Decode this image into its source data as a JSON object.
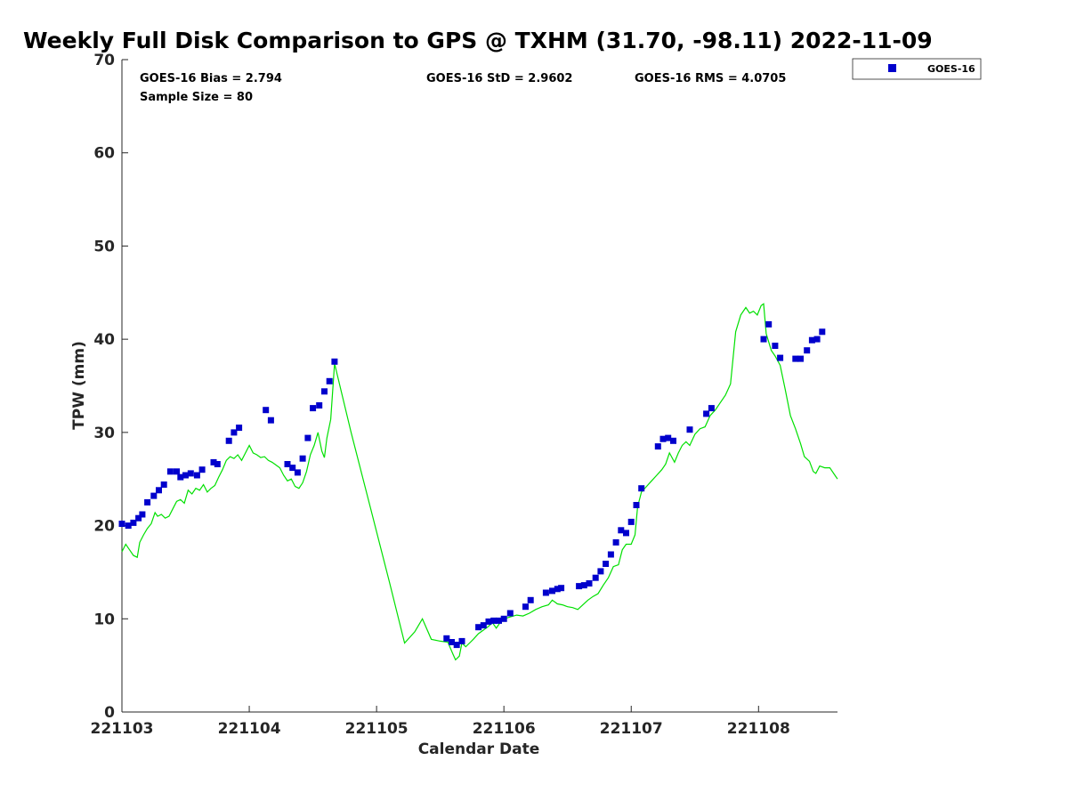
{
  "chart_data": {
    "type": "scatter",
    "title": "Weekly Full Disk Comparison to GPS @ TXHM (31.70, -98.11) 2022-11-09",
    "xlabel": "Calendar Date",
    "ylabel": "TPW (mm)",
    "xlim": [
      0,
      5.62
    ],
    "ylim": [
      0,
      70
    ],
    "x_ticks": [
      {
        "value": 0,
        "label": "221103"
      },
      {
        "value": 1,
        "label": "221104"
      },
      {
        "value": 2,
        "label": "221105"
      },
      {
        "value": 3,
        "label": "221106"
      },
      {
        "value": 4,
        "label": "221107"
      },
      {
        "value": 5,
        "label": "221108"
      }
    ],
    "y_ticks": [
      0,
      10,
      20,
      30,
      40,
      50,
      60,
      70
    ],
    "grid": false,
    "legend_position": "top-right",
    "annotations": {
      "bias": "GOES-16 Bias = 2.794",
      "std": "GOES-16 StD = 2.9602",
      "rms": "GOES-16 RMS = 4.0705",
      "sample_size": "Sample Size = 80"
    },
    "series": [
      {
        "name": "GOES-16",
        "kind": "marker",
        "color": "#0000cc",
        "points": [
          [
            0.0,
            20.2
          ],
          [
            0.05,
            20.0
          ],
          [
            0.09,
            20.3
          ],
          [
            0.13,
            20.8
          ],
          [
            0.16,
            21.2
          ],
          [
            0.2,
            22.5
          ],
          [
            0.25,
            23.2
          ],
          [
            0.29,
            23.8
          ],
          [
            0.33,
            24.4
          ],
          [
            0.38,
            25.8
          ],
          [
            0.43,
            25.8
          ],
          [
            0.46,
            25.2
          ],
          [
            0.5,
            25.4
          ],
          [
            0.54,
            25.6
          ],
          [
            0.59,
            25.4
          ],
          [
            0.63,
            26.0
          ],
          [
            0.72,
            26.8
          ],
          [
            0.75,
            26.6
          ],
          [
            0.84,
            29.1
          ],
          [
            0.88,
            30.0
          ],
          [
            0.92,
            30.5
          ],
          [
            1.13,
            32.4
          ],
          [
            1.17,
            31.3
          ],
          [
            1.3,
            26.6
          ],
          [
            1.34,
            26.2
          ],
          [
            1.38,
            25.7
          ],
          [
            1.42,
            27.2
          ],
          [
            1.46,
            29.4
          ],
          [
            1.5,
            32.6
          ],
          [
            1.55,
            32.9
          ],
          [
            1.59,
            34.4
          ],
          [
            1.63,
            35.5
          ],
          [
            1.67,
            37.6
          ],
          [
            2.55,
            7.9
          ],
          [
            2.59,
            7.5
          ],
          [
            2.63,
            7.2
          ],
          [
            2.67,
            7.6
          ],
          [
            2.8,
            9.1
          ],
          [
            2.84,
            9.3
          ],
          [
            2.88,
            9.7
          ],
          [
            2.92,
            9.8
          ],
          [
            2.96,
            9.8
          ],
          [
            3.0,
            10.0
          ],
          [
            3.05,
            10.6
          ],
          [
            3.17,
            11.3
          ],
          [
            3.21,
            12.0
          ],
          [
            3.33,
            12.8
          ],
          [
            3.38,
            13.0
          ],
          [
            3.42,
            13.2
          ],
          [
            3.45,
            13.3
          ],
          [
            3.59,
            13.5
          ],
          [
            3.63,
            13.6
          ],
          [
            3.67,
            13.8
          ],
          [
            3.72,
            14.4
          ],
          [
            3.76,
            15.1
          ],
          [
            3.8,
            15.9
          ],
          [
            3.84,
            16.9
          ],
          [
            3.88,
            18.2
          ],
          [
            3.92,
            19.5
          ],
          [
            3.96,
            19.2
          ],
          [
            4.0,
            20.4
          ],
          [
            4.04,
            22.2
          ],
          [
            4.08,
            24.0
          ],
          [
            4.21,
            28.5
          ],
          [
            4.25,
            29.3
          ],
          [
            4.29,
            29.4
          ],
          [
            4.33,
            29.1
          ],
          [
            4.46,
            30.3
          ],
          [
            4.59,
            32.0
          ],
          [
            4.63,
            32.6
          ],
          [
            5.04,
            40.0
          ],
          [
            5.08,
            41.6
          ],
          [
            5.13,
            39.3
          ],
          [
            5.17,
            38.0
          ],
          [
            5.29,
            37.9
          ],
          [
            5.33,
            37.9
          ],
          [
            5.38,
            38.8
          ],
          [
            5.42,
            39.9
          ],
          [
            5.46,
            40.0
          ],
          [
            5.5,
            40.8
          ]
        ]
      },
      {
        "name": "GPS",
        "kind": "line",
        "color": "#00e000",
        "points": [
          [
            0.0,
            17.2
          ],
          [
            0.03,
            18.0
          ],
          [
            0.06,
            17.4
          ],
          [
            0.09,
            16.8
          ],
          [
            0.12,
            16.6
          ],
          [
            0.14,
            18.2
          ],
          [
            0.17,
            19.0
          ],
          [
            0.2,
            19.7
          ],
          [
            0.23,
            20.2
          ],
          [
            0.26,
            21.4
          ],
          [
            0.28,
            21.0
          ],
          [
            0.31,
            21.2
          ],
          [
            0.34,
            20.8
          ],
          [
            0.37,
            21.0
          ],
          [
            0.4,
            21.8
          ],
          [
            0.43,
            22.6
          ],
          [
            0.46,
            22.8
          ],
          [
            0.49,
            22.4
          ],
          [
            0.52,
            23.8
          ],
          [
            0.55,
            23.4
          ],
          [
            0.58,
            24.0
          ],
          [
            0.61,
            23.8
          ],
          [
            0.64,
            24.4
          ],
          [
            0.67,
            23.6
          ],
          [
            0.7,
            24.0
          ],
          [
            0.73,
            24.3
          ],
          [
            0.76,
            25.2
          ],
          [
            0.79,
            26.0
          ],
          [
            0.82,
            27.0
          ],
          [
            0.85,
            27.4
          ],
          [
            0.88,
            27.2
          ],
          [
            0.91,
            27.6
          ],
          [
            0.94,
            27.0
          ],
          [
            0.97,
            27.8
          ],
          [
            1.0,
            28.6
          ],
          [
            1.03,
            27.8
          ],
          [
            1.06,
            27.6
          ],
          [
            1.09,
            27.3
          ],
          [
            1.12,
            27.4
          ],
          [
            1.15,
            27.0
          ],
          [
            1.18,
            26.8
          ],
          [
            1.21,
            26.5
          ],
          [
            1.24,
            26.2
          ],
          [
            1.27,
            25.4
          ],
          [
            1.3,
            24.8
          ],
          [
            1.33,
            25.0
          ],
          [
            1.36,
            24.2
          ],
          [
            1.39,
            24.0
          ],
          [
            1.42,
            24.6
          ],
          [
            1.45,
            25.8
          ],
          [
            1.48,
            27.6
          ],
          [
            1.51,
            28.6
          ],
          [
            1.54,
            30.0
          ],
          [
            1.57,
            28.0
          ],
          [
            1.59,
            27.3
          ],
          [
            1.61,
            29.4
          ],
          [
            1.64,
            31.4
          ],
          [
            1.67,
            37.4
          ],
          [
            1.8,
            30.0
          ],
          [
            1.95,
            22.0
          ],
          [
            2.1,
            14.0
          ],
          [
            2.22,
            7.4
          ],
          [
            2.3,
            8.6
          ],
          [
            2.36,
            10.0
          ],
          [
            2.43,
            7.8
          ],
          [
            2.5,
            7.6
          ],
          [
            2.56,
            7.5
          ],
          [
            2.6,
            6.2
          ],
          [
            2.62,
            5.6
          ],
          [
            2.65,
            6.0
          ],
          [
            2.67,
            7.4
          ],
          [
            2.7,
            7.0
          ],
          [
            2.73,
            7.4
          ],
          [
            2.76,
            7.8
          ],
          [
            2.8,
            8.4
          ],
          [
            2.84,
            8.8
          ],
          [
            2.88,
            9.2
          ],
          [
            2.91,
            9.6
          ],
          [
            2.94,
            9.0
          ],
          [
            2.97,
            9.6
          ],
          [
            3.0,
            10.0
          ],
          [
            3.05,
            10.2
          ],
          [
            3.1,
            10.4
          ],
          [
            3.15,
            10.3
          ],
          [
            3.2,
            10.6
          ],
          [
            3.25,
            11.0
          ],
          [
            3.3,
            11.3
          ],
          [
            3.35,
            11.5
          ],
          [
            3.38,
            12.0
          ],
          [
            3.42,
            11.6
          ],
          [
            3.46,
            11.5
          ],
          [
            3.5,
            11.3
          ],
          [
            3.54,
            11.2
          ],
          [
            3.58,
            11.0
          ],
          [
            3.62,
            11.5
          ],
          [
            3.66,
            12.0
          ],
          [
            3.7,
            12.4
          ],
          [
            3.74,
            12.7
          ],
          [
            3.78,
            13.6
          ],
          [
            3.82,
            14.4
          ],
          [
            3.86,
            15.6
          ],
          [
            3.9,
            15.8
          ],
          [
            3.93,
            17.4
          ],
          [
            3.96,
            18.0
          ],
          [
            4.0,
            18.0
          ],
          [
            4.03,
            19.0
          ],
          [
            4.05,
            22.0
          ],
          [
            4.08,
            23.6
          ],
          [
            4.12,
            24.2
          ],
          [
            4.16,
            24.8
          ],
          [
            4.2,
            25.4
          ],
          [
            4.24,
            26.0
          ],
          [
            4.27,
            26.6
          ],
          [
            4.3,
            27.8
          ],
          [
            4.34,
            26.8
          ],
          [
            4.37,
            27.8
          ],
          [
            4.4,
            28.6
          ],
          [
            4.43,
            29.0
          ],
          [
            4.46,
            28.6
          ],
          [
            4.5,
            29.8
          ],
          [
            4.54,
            30.4
          ],
          [
            4.58,
            30.6
          ],
          [
            4.62,
            31.8
          ],
          [
            4.66,
            32.4
          ],
          [
            4.7,
            33.2
          ],
          [
            4.74,
            34.0
          ],
          [
            4.78,
            35.2
          ],
          [
            4.82,
            40.8
          ],
          [
            4.86,
            42.6
          ],
          [
            4.9,
            43.4
          ],
          [
            4.93,
            42.8
          ],
          [
            4.96,
            43.0
          ],
          [
            4.99,
            42.6
          ],
          [
            5.02,
            43.6
          ],
          [
            5.04,
            43.8
          ],
          [
            5.06,
            40.6
          ],
          [
            5.1,
            38.8
          ],
          [
            5.13,
            38.2
          ],
          [
            5.17,
            37.2
          ],
          [
            5.21,
            34.6
          ],
          [
            5.25,
            31.8
          ],
          [
            5.29,
            30.4
          ],
          [
            5.33,
            28.8
          ],
          [
            5.36,
            27.4
          ],
          [
            5.4,
            26.9
          ],
          [
            5.43,
            25.8
          ],
          [
            5.45,
            25.6
          ],
          [
            5.48,
            26.4
          ],
          [
            5.52,
            26.2
          ],
          [
            5.56,
            26.2
          ],
          [
            5.6,
            25.4
          ],
          [
            5.62,
            25.0
          ]
        ]
      }
    ],
    "legend": [
      {
        "label": "GOES-16",
        "marker": "square",
        "color": "#0000cc"
      }
    ]
  }
}
